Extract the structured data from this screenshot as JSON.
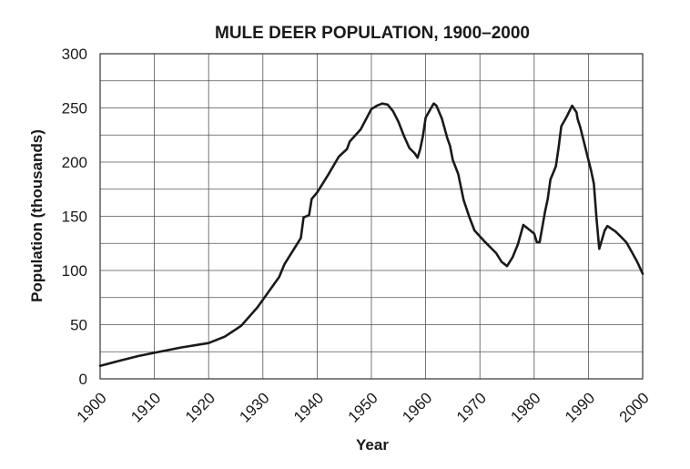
{
  "chart_data": {
    "type": "line",
    "title": "MULE DEER POPULATION, 1900–2000",
    "xlabel": "Year",
    "ylabel": "Population (thousands)",
    "xlim": [
      1900,
      2000
    ],
    "ylim": [
      0,
      300
    ],
    "x_ticks": [
      1900,
      1910,
      1920,
      1930,
      1940,
      1950,
      1960,
      1970,
      1980,
      1990,
      2000
    ],
    "y_ticks": [
      0,
      50,
      100,
      150,
      200,
      250,
      300
    ],
    "grid": true,
    "series": [
      {
        "x": [
          1900,
          1903,
          1907,
          1910,
          1915,
          1920,
          1923,
          1926,
          1929,
          1931,
          1933,
          1934,
          1936,
          1937,
          1937.5,
          1938.5,
          1939,
          1940,
          1942,
          1944,
          1945.5,
          1946,
          1948,
          1950,
          1951,
          1952,
          1953,
          1954,
          1955,
          1956,
          1957,
          1958,
          1958.5,
          1959,
          1959.5,
          1960,
          1961,
          1961.5,
          1962,
          1963,
          1964,
          1964.5,
          1965,
          1966,
          1967,
          1968,
          1969,
          1971,
          1973,
          1974,
          1975,
          1976,
          1977,
          1978,
          1980,
          1980.5,
          1981,
          1982,
          1982.5,
          1983,
          1983.5,
          1984,
          1984.5,
          1985,
          1986,
          1987,
          1987.8,
          1988,
          1988.5,
          1990,
          1990.5,
          1991,
          1991.5,
          1992,
          1993,
          1993.5,
          1995,
          1996,
          1997,
          1998,
          1999,
          2000
        ],
        "y": [
          12,
          16,
          21,
          24,
          29,
          33,
          39,
          49,
          66,
          80,
          94,
          106,
          122,
          130,
          149,
          151,
          166,
          172,
          188,
          205,
          212,
          219,
          230,
          249,
          252,
          254,
          253,
          247,
          237,
          224,
          213,
          208,
          204,
          212,
          224,
          241,
          250,
          254,
          252,
          240,
          222,
          215,
          202,
          189,
          165,
          150,
          137,
          126,
          116,
          108,
          104,
          112,
          124,
          142,
          134,
          126,
          126,
          154,
          166,
          184,
          190,
          196,
          213,
          233,
          242,
          252,
          246,
          240,
          232,
          202,
          192,
          180,
          148,
          120,
          137,
          141,
          136,
          131,
          126,
          117,
          108,
          97
        ]
      }
    ]
  }
}
